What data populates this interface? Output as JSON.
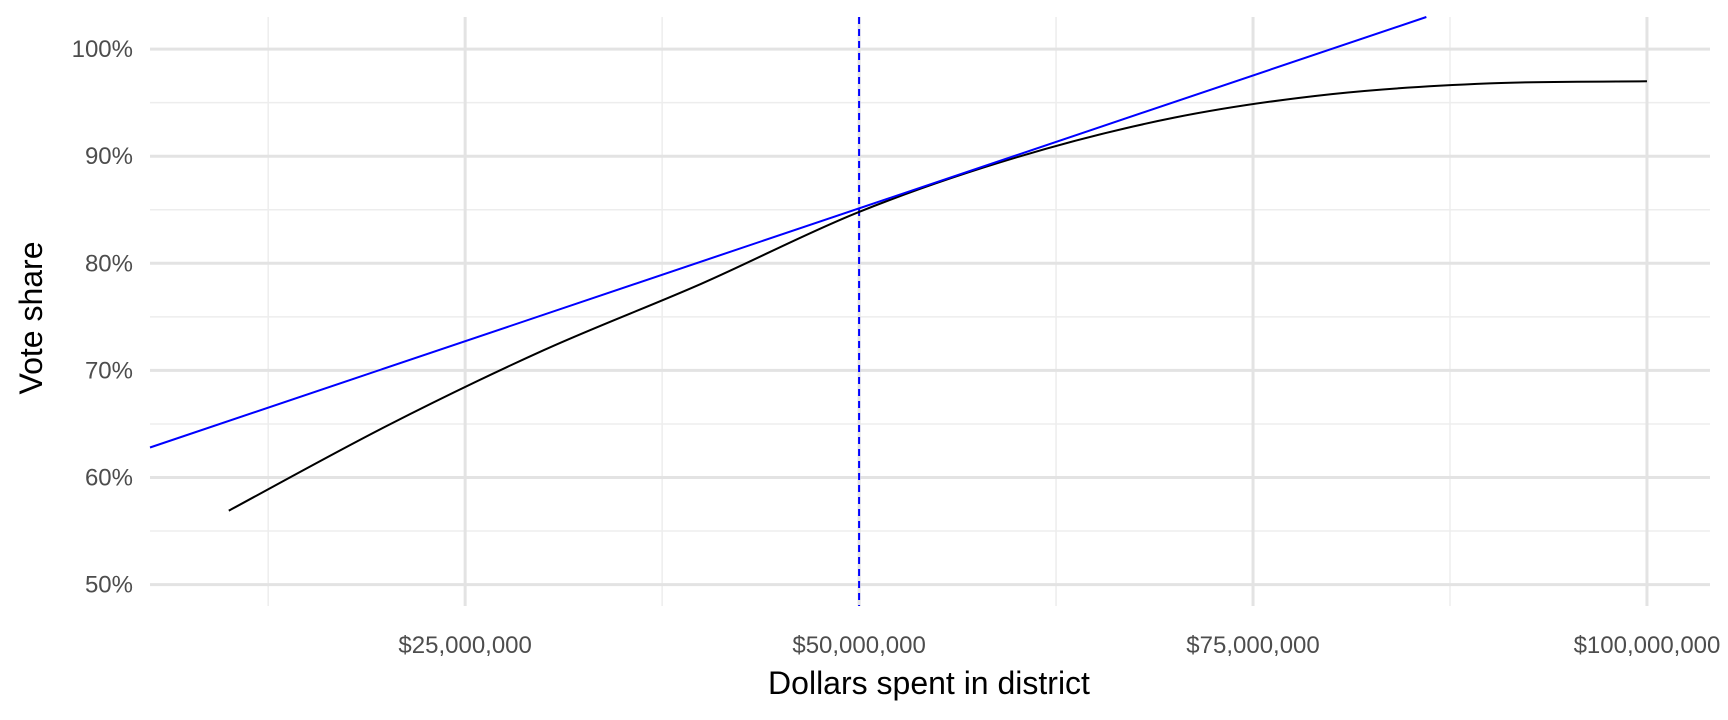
{
  "chart_data": {
    "type": "line",
    "title": "",
    "xlabel": "Dollars spent in district",
    "ylabel": "Vote share",
    "xlim": [
      5000000,
      104000000
    ],
    "ylim": [
      0.48,
      1.03
    ],
    "x_ticks": [
      {
        "value": 25000000,
        "label": "$25,000,000"
      },
      {
        "value": 50000000,
        "label": "$50,000,000"
      },
      {
        "value": 75000000,
        "label": "$75,000,000"
      },
      {
        "value": 100000000,
        "label": "$100,000,000"
      }
    ],
    "y_ticks": [
      {
        "value": 0.5,
        "label": "50%"
      },
      {
        "value": 0.6,
        "label": "60%"
      },
      {
        "value": 0.7,
        "label": "70%"
      },
      {
        "value": 0.8,
        "label": "80%"
      },
      {
        "value": 0.9,
        "label": "90%"
      },
      {
        "value": 1.0,
        "label": "100%"
      }
    ],
    "grid": true,
    "series": [
      {
        "color": "#000000",
        "points": [
          [
            10000000,
            0.569
          ],
          [
            20000000,
            0.648
          ],
          [
            30000000,
            0.719
          ],
          [
            40000000,
            0.781
          ],
          [
            50000000,
            0.848
          ],
          [
            60000000,
            0.899
          ],
          [
            70000000,
            0.936
          ],
          [
            80000000,
            0.958
          ],
          [
            90000000,
            0.968
          ],
          [
            100000000,
            0.97
          ]
        ]
      },
      {
        "color": "#0000ff",
        "points": [
          [
            5000000,
            0.628
          ],
          [
            86000000,
            1.03
          ]
        ]
      }
    ],
    "reference_lines": [
      {
        "axis": "x",
        "value": 50000000,
        "color": "#0000ff",
        "style": "dashed"
      }
    ]
  }
}
